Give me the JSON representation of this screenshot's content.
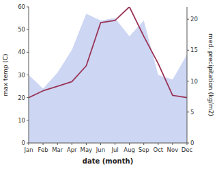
{
  "chart_data": {
    "type": "line",
    "xlabel": "date (month)",
    "ylabel": "max temp (C)",
    "y2label": "med. precipitation (kg/m2)",
    "categories": [
      "Jan",
      "Feb",
      "Mar",
      "Apr",
      "May",
      "Jun",
      "Jul",
      "Aug",
      "Sep",
      "Oct",
      "Nov",
      "Dec"
    ],
    "series": [
      {
        "type": "area",
        "color": "#b8c4ee",
        "values": [
          30,
          24,
          31,
          41,
          57,
          54,
          55,
          47,
          54,
          30,
          28,
          39
        ]
      },
      {
        "type": "line",
        "color": "#993355",
        "values": [
          20,
          23,
          25,
          27,
          34,
          53,
          54,
          60,
          47,
          35,
          21,
          20
        ]
      }
    ],
    "ylim": [
      0,
      60
    ],
    "yticks": [
      0,
      10,
      20,
      30,
      40,
      50,
      60
    ],
    "y2lim": [
      0,
      22
    ],
    "y2ticks": [
      0,
      5,
      10,
      15,
      20
    ],
    "grid": false
  }
}
